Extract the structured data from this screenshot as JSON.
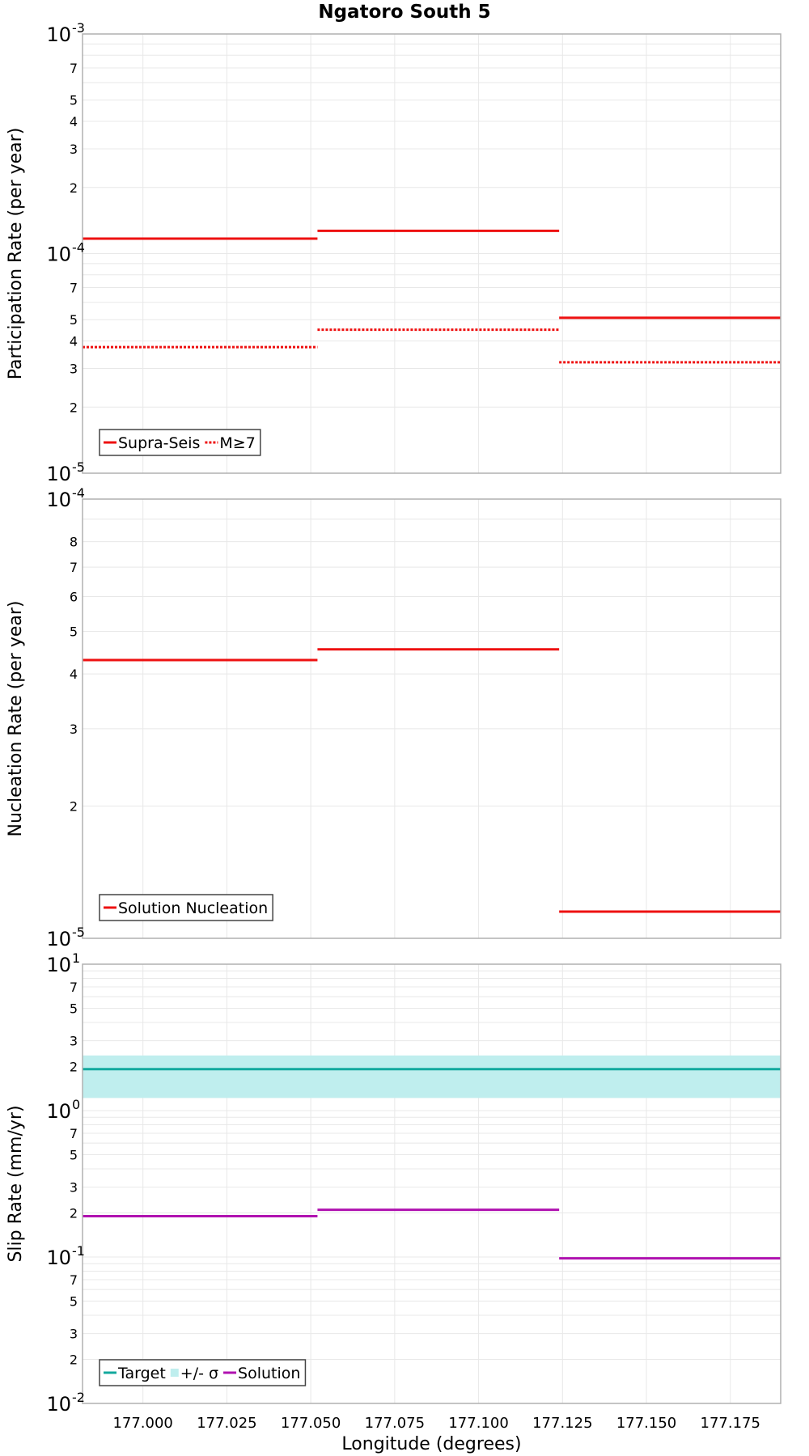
{
  "title": "Ngatoro South 5",
  "colors": {
    "red": "#ee1111",
    "teal": "#13a89e",
    "band": "#bfeeee",
    "magenta": "#b012b0",
    "grid": "#e8e8e8",
    "frame": "#b0b0b0"
  },
  "chart_data": [
    {
      "type": "line",
      "name": "participation",
      "ylabel": "Participation Rate (per year)",
      "yscale": "log",
      "ylim": [
        1e-05,
        0.001
      ],
      "xlim": [
        176.982,
        177.19
      ],
      "major_ticks": [
        {
          "base": "10",
          "exp": "-5",
          "value": 1e-05
        },
        {
          "base": "10",
          "exp": "-4",
          "value": 0.0001
        },
        {
          "base": "10",
          "exp": "-3",
          "value": 0.001
        }
      ],
      "minor_labels": [
        2,
        3,
        4,
        5,
        7
      ],
      "legend_pos": "bottom-left",
      "series": [
        {
          "name": "Supra-Seis",
          "style": "solid",
          "color": "#ee1111",
          "segments": [
            {
              "x": [
                176.982,
                177.052
              ],
              "y": 0.000117
            },
            {
              "x": [
                177.052,
                177.124
              ],
              "y": 0.000127
            },
            {
              "x": [
                177.124,
                177.19
              ],
              "y": 5.1e-05
            }
          ]
        },
        {
          "name": "M≥7",
          "style": "dotted",
          "color": "#ee1111",
          "segments": [
            {
              "x": [
                176.982,
                177.052
              ],
              "y": 3.75e-05
            },
            {
              "x": [
                177.052,
                177.124
              ],
              "y": 4.5e-05
            },
            {
              "x": [
                177.124,
                177.19
              ],
              "y": 3.2e-05
            }
          ]
        }
      ]
    },
    {
      "type": "line",
      "name": "nucleation",
      "ylabel": "Nucleation Rate (per year)",
      "yscale": "log",
      "ylim": [
        1e-05,
        0.0001
      ],
      "xlim": [
        176.982,
        177.19
      ],
      "major_ticks": [
        {
          "base": "10",
          "exp": "-5",
          "value": 1e-05
        },
        {
          "base": "10",
          "exp": "-4",
          "value": 0.0001
        }
      ],
      "minor_labels": [
        2,
        3,
        4,
        5,
        6,
        7,
        8
      ],
      "legend_pos": "bottom-left",
      "series": [
        {
          "name": "Solution Nucleation",
          "style": "solid",
          "color": "#ee1111",
          "segments": [
            {
              "x": [
                176.982,
                177.052
              ],
              "y": 4.3e-05
            },
            {
              "x": [
                177.052,
                177.124
              ],
              "y": 4.55e-05
            },
            {
              "x": [
                177.124,
                177.19
              ],
              "y": 1.15e-05
            }
          ]
        }
      ]
    },
    {
      "type": "line",
      "name": "slip",
      "ylabel": "Slip Rate (mm/yr)",
      "xlabel": "Longitude (degrees)",
      "yscale": "log",
      "ylim": [
        0.01,
        10
      ],
      "xlim": [
        176.982,
        177.19
      ],
      "x_ticks": [
        "177.000",
        "177.025",
        "177.050",
        "177.075",
        "177.100",
        "177.125",
        "177.150",
        "177.175"
      ],
      "major_ticks": [
        {
          "base": "10",
          "exp": "-2",
          "value": 0.01
        },
        {
          "base": "10",
          "exp": "-1",
          "value": 0.1
        },
        {
          "base": "10",
          "exp": "0",
          "value": 1
        },
        {
          "base": "10",
          "exp": "1",
          "value": 10
        }
      ],
      "minor_labels": [
        2,
        3,
        5,
        7
      ],
      "legend_pos": "bottom-left",
      "band": {
        "name": "+/- σ",
        "low": 1.22,
        "high": 2.38,
        "color": "#bfeeee"
      },
      "series": [
        {
          "name": "Target",
          "style": "solid",
          "color": "#13a89e",
          "segments": [
            {
              "x": [
                176.982,
                177.19
              ],
              "y": 1.92
            }
          ]
        },
        {
          "name": "Solution",
          "style": "solid",
          "color": "#b012b0",
          "segments": [
            {
              "x": [
                176.982,
                177.052
              ],
              "y": 0.19
            },
            {
              "x": [
                177.052,
                177.124
              ],
              "y": 0.21
            },
            {
              "x": [
                177.124,
                177.19
              ],
              "y": 0.098
            }
          ]
        }
      ]
    }
  ]
}
